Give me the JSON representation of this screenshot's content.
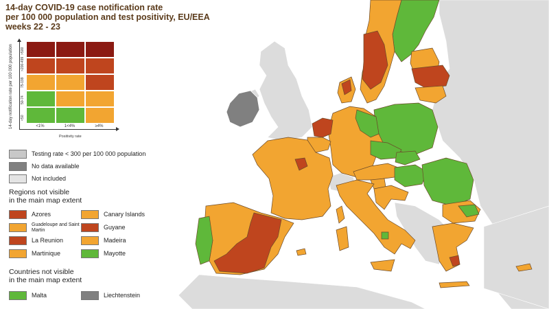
{
  "title": {
    "line1": "14-day COVID-19 case notification rate",
    "line2": "per 100 000 population and test positivity, EU/EEA",
    "line3": "weeks 22 - 23"
  },
  "colors": {
    "sea": "#ffffff",
    "non_eu": "#dcdcdc",
    "no_data": "#808080",
    "green": "#5fb83a",
    "orange": "#f2a531",
    "red": "#bf451e",
    "dark_red": "#8b1a12",
    "border": "#6b4a2a"
  },
  "matrix": {
    "y_axis_title": "14-day notification rate per 100 000 population",
    "x_axis_title": "Positivity rate",
    "row_labels": [
      ">500",
      ">200-499",
      "75-199",
      "50-74",
      "<50"
    ],
    "col_labels": [
      "<1%",
      "1<4%",
      "≥4%"
    ],
    "cells": [
      [
        "dark_red",
        "dark_red",
        "dark_red"
      ],
      [
        "red",
        "red",
        "red"
      ],
      [
        "orange",
        "orange",
        "red"
      ],
      [
        "green",
        "orange",
        "orange"
      ],
      [
        "green",
        "green",
        "orange"
      ]
    ]
  },
  "legend": {
    "testing_rate": "Testing rate < 300 per 100 000 population",
    "no_data": "No data available",
    "not_included": "Not included",
    "regions_heading_1": "Regions not visible",
    "regions_heading_2": "in the main map extent",
    "regions": [
      {
        "label": "Azores",
        "color": "red"
      },
      {
        "label": "Canary Islands",
        "color": "orange"
      },
      {
        "label": "Guadeloupe and Saint Martin",
        "color": "orange",
        "small": true
      },
      {
        "label": "Guyane",
        "color": "red"
      },
      {
        "label": "La Reunion",
        "color": "red"
      },
      {
        "label": "Madeira",
        "color": "orange"
      },
      {
        "label": "Martinique",
        "color": "orange"
      },
      {
        "label": "Mayotte",
        "color": "green"
      }
    ],
    "countries_heading_1": "Countries not visible",
    "countries_heading_2": "in the main map extent",
    "countries": [
      {
        "label": "Malta",
        "color": "green"
      },
      {
        "label": "Liechtenstein",
        "color": "no_data"
      }
    ]
  }
}
